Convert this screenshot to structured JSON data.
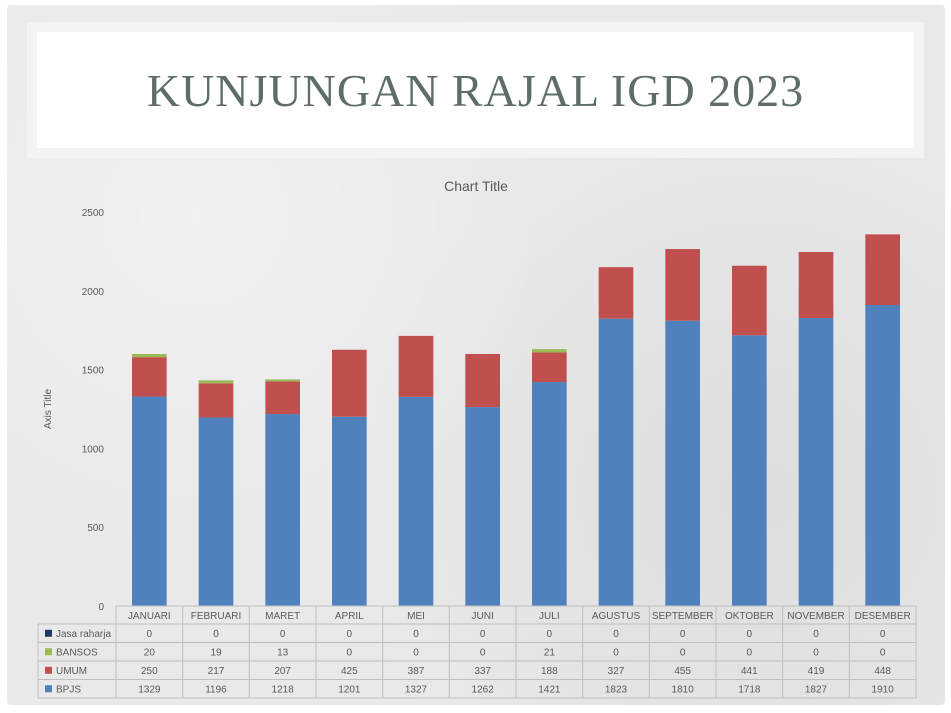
{
  "slide": {
    "title": "KUNJUNGAN RAJAL IGD 2023"
  },
  "chart_data": {
    "type": "bar",
    "stacked": true,
    "title": "Chart Title",
    "xlabel": "",
    "ylabel": "Axis Title",
    "ylim": [
      0,
      2500
    ],
    "yticks": [
      0,
      500,
      1000,
      1500,
      2000,
      2500
    ],
    "grid": false,
    "data_table": true,
    "categories": [
      "JANUARI",
      "FEBRUARI",
      "MARET",
      "APRIL",
      "MEI",
      "JUNI",
      "JULI",
      "AGUSTUS",
      "SEPTEMBER",
      "OKTOBER",
      "NOVEMBER",
      "DESEMBER"
    ],
    "series": [
      {
        "name": "BPJS",
        "color": "#4f81bd",
        "values": [
          1329,
          1196,
          1218,
          1201,
          1327,
          1262,
          1421,
          1823,
          1810,
          1718,
          1827,
          1910
        ]
      },
      {
        "name": "UMUM",
        "color": "#c0504d",
        "values": [
          250,
          217,
          207,
          425,
          387,
          337,
          188,
          327,
          455,
          441,
          419,
          448
        ]
      },
      {
        "name": "BANSOS",
        "color": "#9bbb59",
        "values": [
          20,
          19,
          13,
          0,
          0,
          0,
          21,
          0,
          0,
          0,
          0,
          0
        ]
      },
      {
        "name": "Jasa raharja",
        "color": "#1f3864",
        "values": [
          0,
          0,
          0,
          0,
          0,
          0,
          0,
          0,
          0,
          0,
          0,
          0
        ]
      }
    ]
  }
}
